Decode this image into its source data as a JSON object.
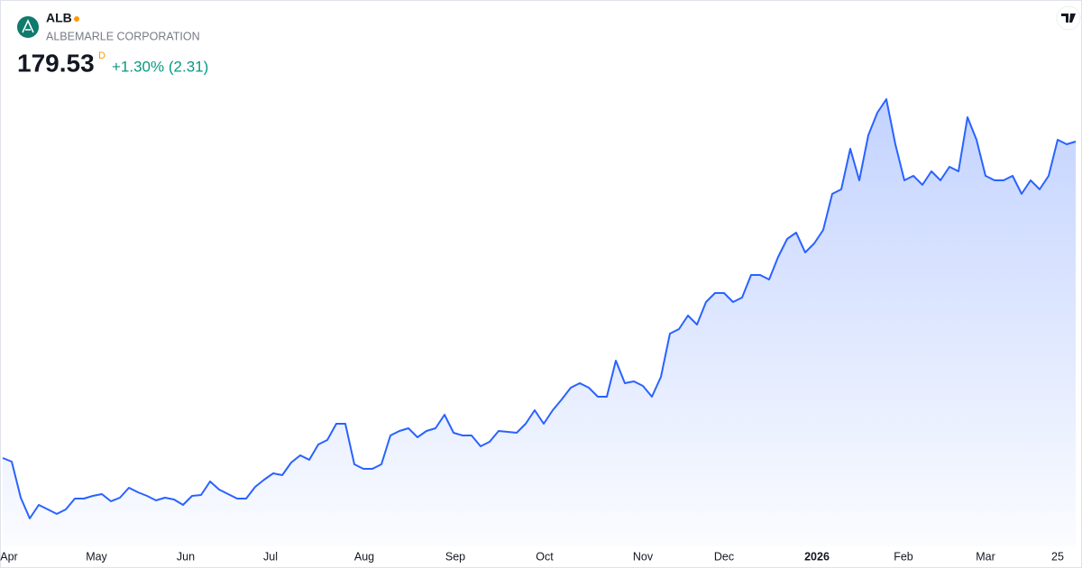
{
  "header": {
    "symbol": "ALB",
    "name": "ALBEMARLE CORPORATION",
    "price": 179.53,
    "interval": "D",
    "change": "+1.30% (2.31)"
  },
  "chart_data": {
    "type": "area",
    "color": "#2962ff",
    "values": [
      70.72,
      69.48,
      57.08,
      49.95,
      54.6,
      53.05,
      51.5,
      53.05,
      56.77,
      56.77,
      57.7,
      58.32,
      55.84,
      57.08,
      60.49,
      58.94,
      57.7,
      56.15,
      57.08,
      56.46,
      54.6,
      57.7,
      58.01,
      62.66,
      59.87,
      58.32,
      56.77,
      56.77,
      60.8,
      63.28,
      65.45,
      64.83,
      69.17,
      71.65,
      70.1,
      75.37,
      76.92,
      82.5,
      82.5,
      68.55,
      67.0,
      67.0,
      68.55,
      78.47,
      80.02,
      80.95,
      77.85,
      80.02,
      80.95,
      85.6,
      79.4,
      78.47,
      78.47,
      74.75,
      76.3,
      80.02,
      79.71,
      79.4,
      82.5,
      87.15,
      82.5,
      87.15,
      90.87,
      94.9,
      96.45,
      94.9,
      91.8,
      91.8,
      104.2,
      96.45,
      97.07,
      95.52,
      91.8,
      98.62,
      113.5,
      115.05,
      119.7,
      116.6,
      124.35,
      127.45,
      127.45,
      124.35,
      125.9,
      133.65,
      133.65,
      132.1,
      139.85,
      146.05,
      148.22,
      141.4,
      144.5,
      149.15,
      161.55,
      163.1,
      177.05,
      166.2,
      181.7,
      189.45,
      194.1,
      178.6,
      166.2,
      167.75,
      164.65,
      169.3,
      166.2,
      170.85,
      169.3,
      187.9,
      180.15,
      167.75,
      166.2,
      166.2,
      167.75,
      161.55,
      166.2,
      163.1,
      167.75,
      180.15,
      178.6,
      179.53
    ],
    "xlim": [
      0,
      119
    ],
    "ylim": [
      42.2,
      200.3
    ],
    "xticks": [
      {
        "value": 0.7,
        "label": "Apr"
      },
      {
        "value": 10.4,
        "label": "May"
      },
      {
        "value": 20.3,
        "label": "Jun"
      },
      {
        "value": 29.7,
        "label": "Jul"
      },
      {
        "value": 40.1,
        "label": "Aug"
      },
      {
        "value": 50.2,
        "label": "Sep"
      },
      {
        "value": 60.1,
        "label": "Oct"
      },
      {
        "value": 71.0,
        "label": "Nov"
      },
      {
        "value": 80.0,
        "label": "Dec"
      },
      {
        "value": 90.3,
        "label": "2026"
      },
      {
        "value": 99.9,
        "label": "Feb"
      },
      {
        "value": 109.0,
        "label": "Mar"
      },
      {
        "value": 117.0,
        "label": "25"
      }
    ]
  }
}
